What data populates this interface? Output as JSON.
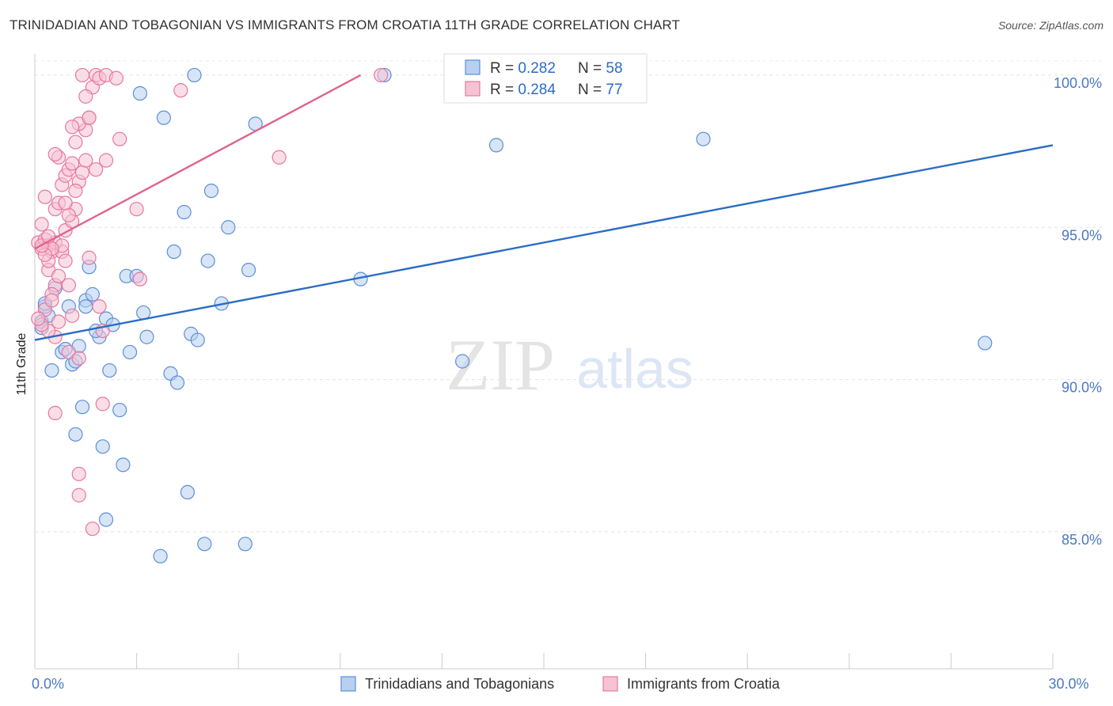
{
  "header": {
    "title": "TRINIDADIAN AND TOBAGONIAN VS IMMIGRANTS FROM CROATIA 11TH GRADE CORRELATION CHART",
    "source": "Source: ZipAtlas.com"
  },
  "watermark": {
    "zip": "ZIP",
    "atlas": "atlas"
  },
  "colors": {
    "blue": "#5b8fd8",
    "blue_fill": "#b8d0f0",
    "blue_line": "#2b6cc4",
    "pink": "#e8779e",
    "pink_fill": "#f6c3d4",
    "pink_line": "#e0638f",
    "tick_text": "#4a78c4"
  },
  "legend_box": {
    "rows": [
      {
        "r_label": "R = ",
        "r_value": "0.282",
        "n_label": "N = ",
        "n_value": "58"
      },
      {
        "r_label": "R = ",
        "r_value": "0.284",
        "n_label": "N = ",
        "n_value": "77"
      }
    ]
  },
  "bottom_legend": {
    "items": [
      {
        "label": "Trinidadians and Tobagonians"
      },
      {
        "label": "Immigrants from Croatia"
      }
    ]
  },
  "chart_data": {
    "type": "scatter",
    "title": "TRINIDADIAN AND TOBAGONIAN VS IMMIGRANTS FROM CROATIA 11TH GRADE CORRELATION CHART",
    "xlabel": "",
    "ylabel": "11th Grade",
    "xlim": [
      0,
      30
    ],
    "ylim": [
      80.5,
      100.7
    ],
    "x_tick_labels": [
      {
        "value": 0,
        "label": "0.0%"
      },
      {
        "value": 30,
        "label": "30.0%"
      }
    ],
    "x_minor_ticks": [
      0,
      3,
      6,
      9,
      12,
      15,
      18,
      21,
      24,
      27,
      30
    ],
    "y_ticks": [
      {
        "value": 85,
        "label": "85.0%"
      },
      {
        "value": 90,
        "label": "90.0%"
      },
      {
        "value": 95,
        "label": "95.0%"
      },
      {
        "value": 100,
        "label": "100.0%"
      }
    ],
    "series": [
      {
        "name": "Trinidadians and Tobagonians",
        "color": "blue",
        "trend": {
          "x": [
            0,
            30
          ],
          "y": [
            91.3,
            97.7
          ]
        },
        "points": [
          [
            0.2,
            91.9
          ],
          [
            0.4,
            92.1
          ],
          [
            0.3,
            92.4
          ],
          [
            0.6,
            93.0
          ],
          [
            0.5,
            90.3
          ],
          [
            0.8,
            90.9
          ],
          [
            1.0,
            92.4
          ],
          [
            1.1,
            90.5
          ],
          [
            1.3,
            91.1
          ],
          [
            1.5,
            92.6
          ],
          [
            1.6,
            93.7
          ],
          [
            1.7,
            92.8
          ],
          [
            1.5,
            92.4
          ],
          [
            1.9,
            91.4
          ],
          [
            2.1,
            92.0
          ],
          [
            2.3,
            91.8
          ],
          [
            2.2,
            90.3
          ],
          [
            2.5,
            89.0
          ],
          [
            2.8,
            90.9
          ],
          [
            2.7,
            93.4
          ],
          [
            3.0,
            93.4
          ],
          [
            3.2,
            92.2
          ],
          [
            3.3,
            91.4
          ],
          [
            3.1,
            99.4
          ],
          [
            3.8,
            98.6
          ],
          [
            4.1,
            94.2
          ],
          [
            4.0,
            90.2
          ],
          [
            4.2,
            89.9
          ],
          [
            4.4,
            95.5
          ],
          [
            4.6,
            91.5
          ],
          [
            4.8,
            91.3
          ],
          [
            4.7,
            100.0
          ],
          [
            5.1,
            93.9
          ],
          [
            5.2,
            96.2
          ],
          [
            5.5,
            92.5
          ],
          [
            5.7,
            95.0
          ],
          [
            6.3,
            93.6
          ],
          [
            6.5,
            98.4
          ],
          [
            1.2,
            88.2
          ],
          [
            1.4,
            89.1
          ],
          [
            2.0,
            87.8
          ],
          [
            2.6,
            87.2
          ],
          [
            4.5,
            86.3
          ],
          [
            2.1,
            85.4
          ],
          [
            5.0,
            84.6
          ],
          [
            6.2,
            84.6
          ],
          [
            3.7,
            84.2
          ],
          [
            9.6,
            93.3
          ],
          [
            10.3,
            100.0
          ],
          [
            12.6,
            90.6
          ],
          [
            13.6,
            97.7
          ],
          [
            19.7,
            97.9
          ],
          [
            28.0,
            91.2
          ],
          [
            0.3,
            92.5
          ],
          [
            1.2,
            90.6
          ],
          [
            0.9,
            91.0
          ],
          [
            1.8,
            91.6
          ],
          [
            0.2,
            91.7
          ]
        ]
      },
      {
        "name": "Immigrants from Croatia",
        "color": "pink",
        "trend": {
          "x": [
            0,
            9.6
          ],
          "y": [
            94.3,
            100.0
          ]
        },
        "points": [
          [
            0.1,
            94.5
          ],
          [
            0.2,
            94.3
          ],
          [
            0.3,
            94.6
          ],
          [
            0.4,
            94.4
          ],
          [
            0.5,
            94.2
          ],
          [
            0.2,
            95.1
          ],
          [
            0.3,
            96.0
          ],
          [
            0.6,
            95.6
          ],
          [
            0.7,
            95.8
          ],
          [
            0.8,
            96.4
          ],
          [
            0.9,
            96.7
          ],
          [
            1.0,
            96.9
          ],
          [
            1.1,
            97.1
          ],
          [
            0.7,
            97.3
          ],
          [
            1.3,
            96.5
          ],
          [
            1.4,
            96.8
          ],
          [
            1.2,
            97.8
          ],
          [
            1.5,
            98.2
          ],
          [
            1.6,
            98.6
          ],
          [
            1.3,
            98.4
          ],
          [
            1.7,
            99.6
          ],
          [
            1.5,
            99.3
          ],
          [
            1.8,
            100.0
          ],
          [
            1.9,
            99.9
          ],
          [
            2.1,
            100.0
          ],
          [
            1.4,
            100.0
          ],
          [
            4.3,
            99.5
          ],
          [
            2.5,
            97.9
          ],
          [
            3.0,
            95.6
          ],
          [
            7.2,
            97.3
          ],
          [
            0.4,
            93.6
          ],
          [
            0.6,
            93.1
          ],
          [
            0.5,
            92.8
          ],
          [
            0.8,
            94.2
          ],
          [
            0.9,
            94.9
          ],
          [
            1.1,
            95.2
          ],
          [
            0.3,
            92.3
          ],
          [
            0.5,
            92.6
          ],
          [
            0.7,
            91.9
          ],
          [
            0.6,
            91.4
          ],
          [
            1.0,
            90.9
          ],
          [
            1.3,
            90.7
          ],
          [
            1.6,
            94.0
          ],
          [
            1.9,
            92.4
          ],
          [
            2.0,
            91.6
          ],
          [
            1.1,
            92.1
          ],
          [
            0.4,
            91.6
          ],
          [
            0.2,
            91.8
          ],
          [
            0.9,
            93.9
          ],
          [
            0.6,
            94.5
          ],
          [
            1.2,
            95.6
          ],
          [
            0.8,
            94.4
          ],
          [
            3.1,
            93.3
          ],
          [
            2.0,
            89.2
          ],
          [
            0.6,
            88.9
          ],
          [
            1.3,
            86.9
          ],
          [
            1.3,
            86.2
          ],
          [
            1.7,
            85.1
          ],
          [
            0.4,
            93.9
          ],
          [
            0.7,
            93.4
          ],
          [
            0.5,
            94.3
          ],
          [
            0.3,
            94.1
          ],
          [
            1.0,
            95.4
          ],
          [
            1.2,
            96.2
          ],
          [
            0.9,
            95.8
          ],
          [
            1.5,
            97.2
          ],
          [
            2.1,
            97.2
          ],
          [
            1.8,
            96.9
          ],
          [
            0.6,
            97.4
          ],
          [
            1.1,
            98.3
          ],
          [
            1.6,
            98.6
          ],
          [
            10.2,
            100.0
          ],
          [
            2.4,
            99.9
          ],
          [
            0.2,
            94.4
          ],
          [
            0.4,
            94.7
          ],
          [
            0.1,
            92.0
          ],
          [
            1.0,
            93.1
          ]
        ]
      }
    ]
  }
}
